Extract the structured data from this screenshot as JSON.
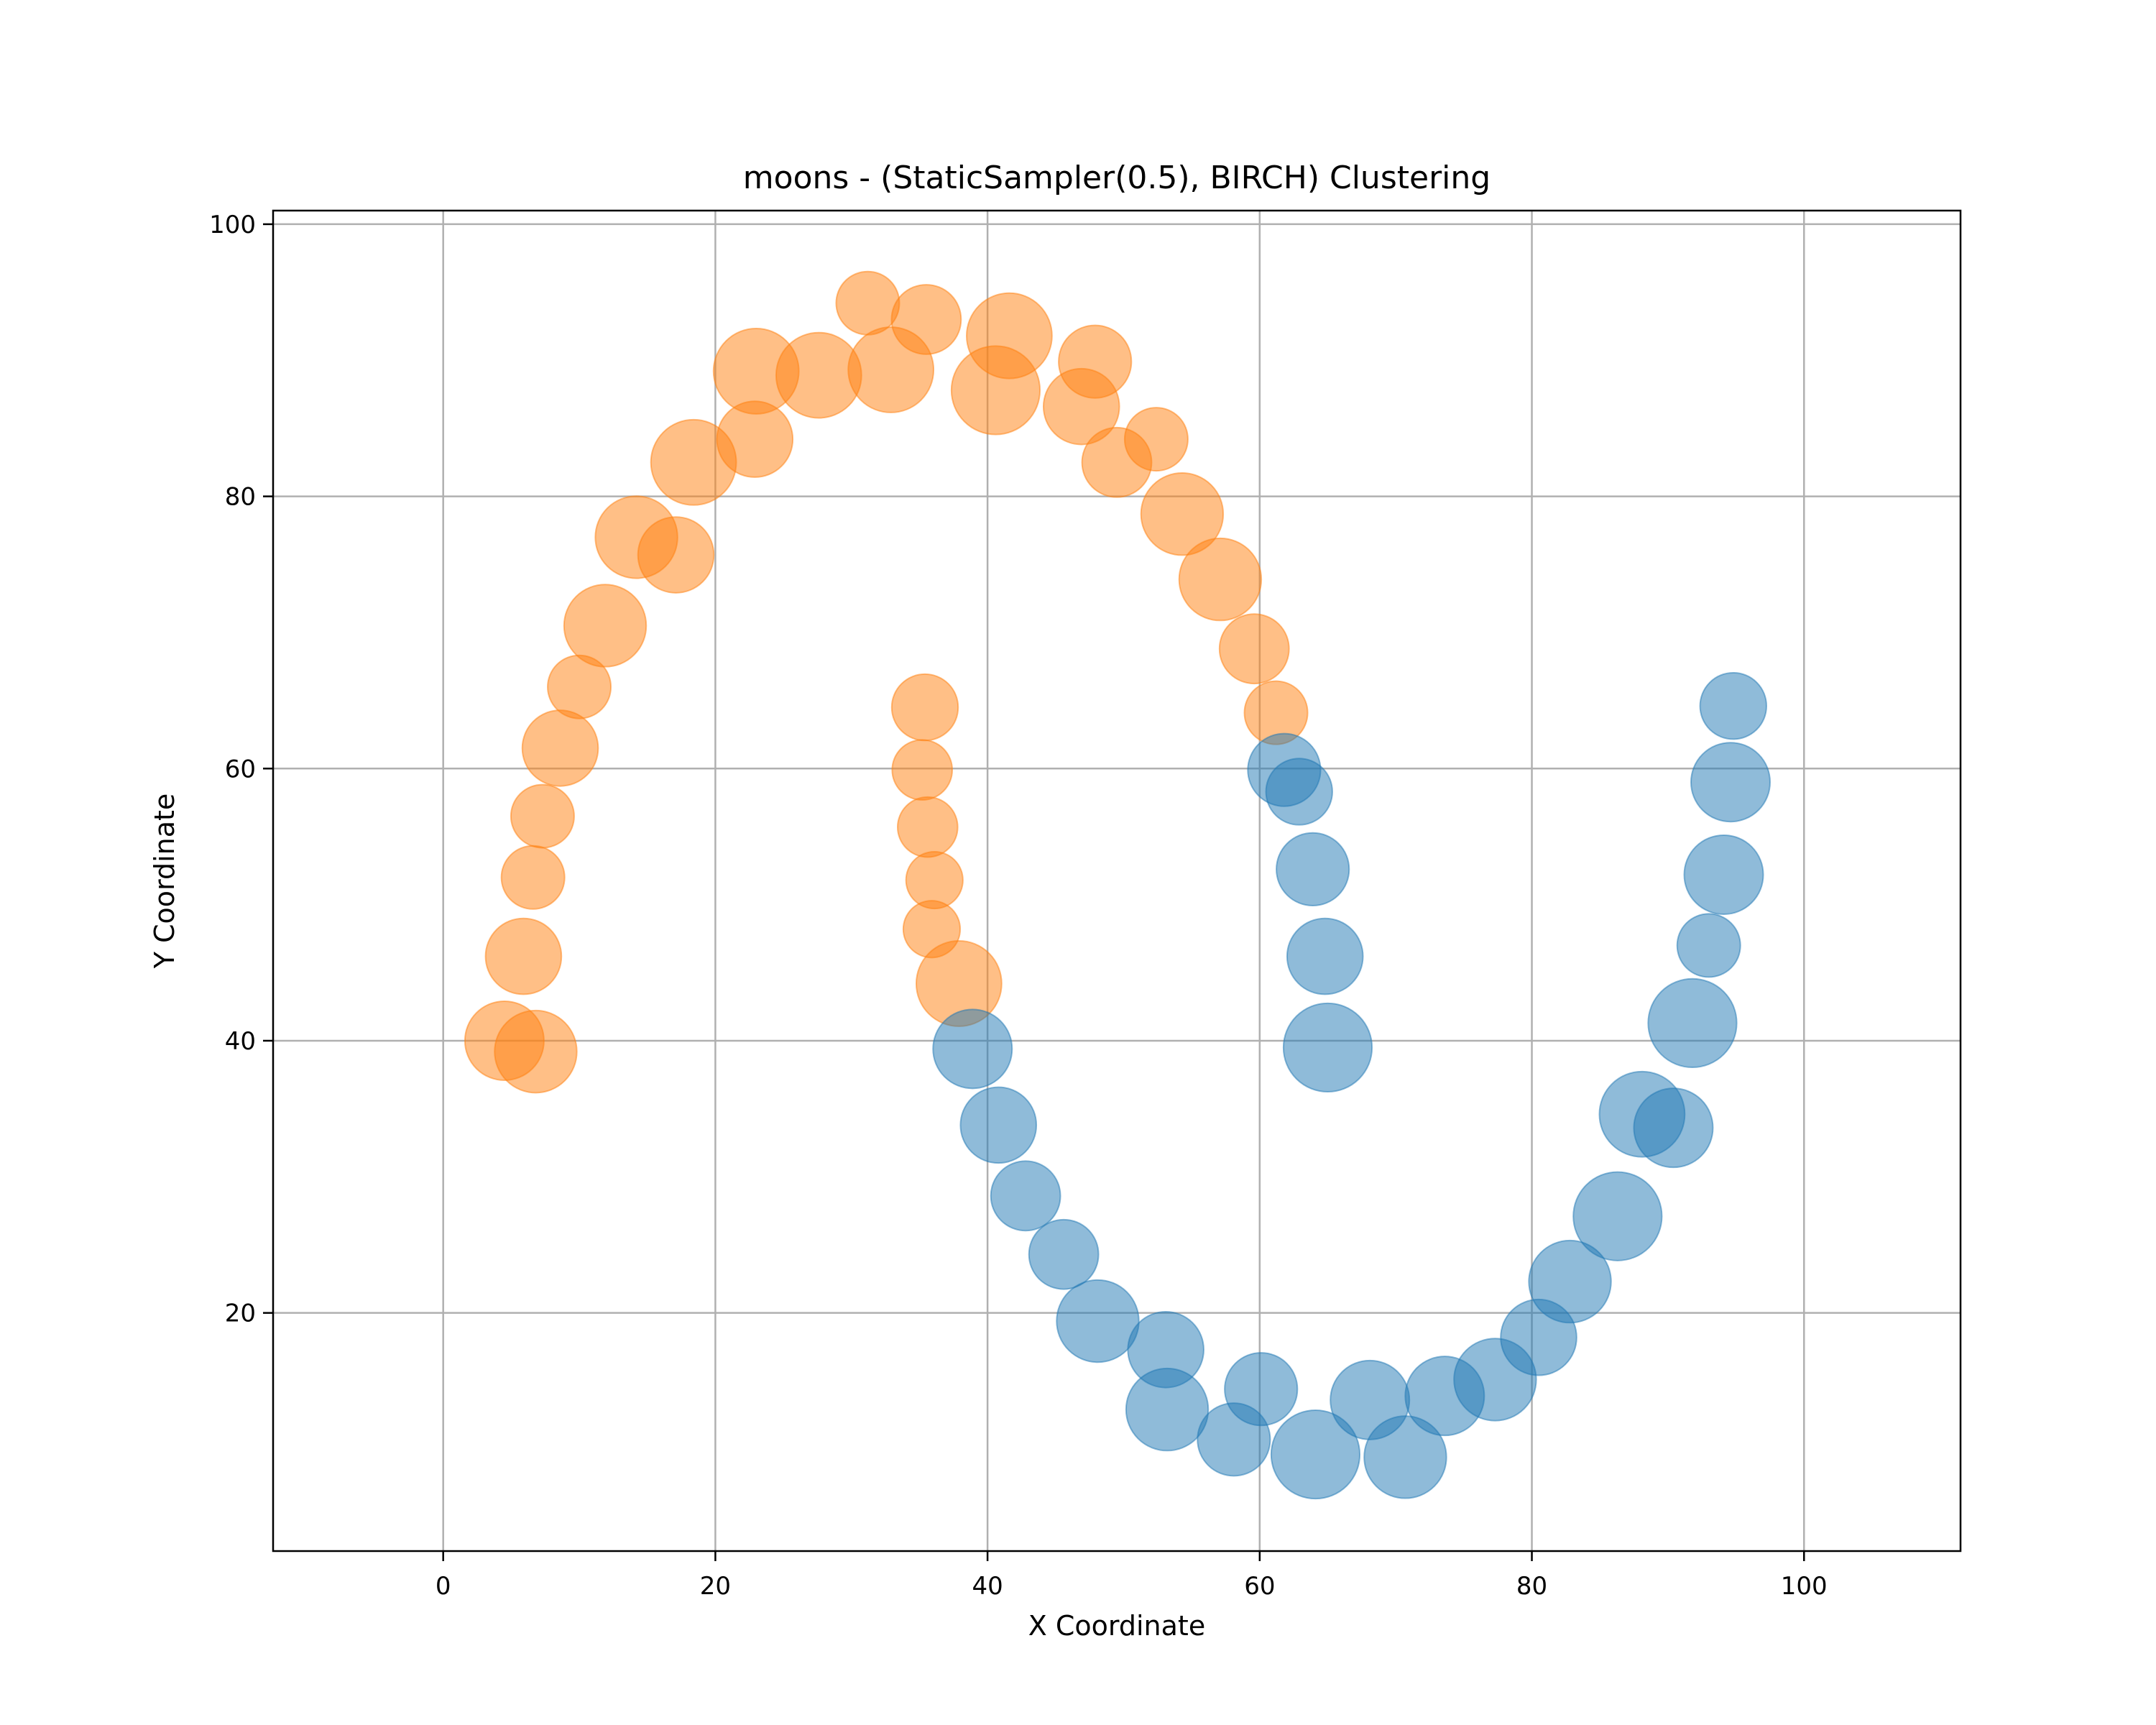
{
  "chart_data": {
    "type": "scatter",
    "title": "moons - (StaticSampler(0.5), BIRCH) Clustering",
    "xlabel": "X Coordinate",
    "ylabel": "Y Coordinate",
    "xlim": [
      -12.5,
      111.5
    ],
    "ylim": [
      2.5,
      101
    ],
    "xticks": [
      0,
      20,
      40,
      60,
      80,
      100
    ],
    "yticks": [
      20,
      40,
      60,
      80,
      100
    ],
    "xtick_labels": [
      "0",
      "20",
      "40",
      "60",
      "80",
      "100"
    ],
    "ytick_labels": [
      "20",
      "40",
      "60",
      "80",
      "100"
    ],
    "grid": true,
    "point_opacity": 0.5,
    "series": [
      {
        "color": "#ff7f0e",
        "points": [
          {
            "x": 4.5,
            "y": 40.0,
            "s": 1.25
          },
          {
            "x": 6.8,
            "y": 39.2,
            "s": 1.3
          },
          {
            "x": 5.9,
            "y": 46.2,
            "s": 1.2
          },
          {
            "x": 6.6,
            "y": 52.0,
            "s": 1.0
          },
          {
            "x": 7.3,
            "y": 56.5,
            "s": 1.0
          },
          {
            "x": 8.6,
            "y": 61.5,
            "s": 1.2
          },
          {
            "x": 10.0,
            "y": 66.0,
            "s": 1.0
          },
          {
            "x": 11.9,
            "y": 70.5,
            "s": 1.3
          },
          {
            "x": 14.2,
            "y": 77.0,
            "s": 1.3
          },
          {
            "x": 17.1,
            "y": 75.7,
            "s": 1.2
          },
          {
            "x": 18.4,
            "y": 82.5,
            "s": 1.35
          },
          {
            "x": 22.9,
            "y": 84.2,
            "s": 1.2
          },
          {
            "x": 23.0,
            "y": 89.2,
            "s": 1.35
          },
          {
            "x": 27.6,
            "y": 88.9,
            "s": 1.35
          },
          {
            "x": 31.2,
            "y": 94.2,
            "s": 1.0
          },
          {
            "x": 32.9,
            "y": 89.3,
            "s": 1.35
          },
          {
            "x": 35.5,
            "y": 93.0,
            "s": 1.1
          },
          {
            "x": 40.6,
            "y": 87.8,
            "s": 1.4
          },
          {
            "x": 41.6,
            "y": 91.8,
            "s": 1.35
          },
          {
            "x": 46.9,
            "y": 86.6,
            "s": 1.2
          },
          {
            "x": 47.9,
            "y": 89.9,
            "s": 1.15
          },
          {
            "x": 49.5,
            "y": 82.5,
            "s": 1.1
          },
          {
            "x": 52.4,
            "y": 84.2,
            "s": 1.0
          },
          {
            "x": 54.3,
            "y": 78.7,
            "s": 1.3
          },
          {
            "x": 57.1,
            "y": 73.9,
            "s": 1.3
          },
          {
            "x": 59.6,
            "y": 68.8,
            "s": 1.1
          },
          {
            "x": 61.2,
            "y": 64.1,
            "s": 1.0
          },
          {
            "x": 35.4,
            "y": 64.5,
            "s": 1.05
          },
          {
            "x": 35.2,
            "y": 59.9,
            "s": 0.95
          },
          {
            "x": 35.6,
            "y": 55.7,
            "s": 0.95
          },
          {
            "x": 36.1,
            "y": 51.8,
            "s": 0.9
          },
          {
            "x": 35.9,
            "y": 48.2,
            "s": 0.9
          },
          {
            "x": 37.9,
            "y": 44.2,
            "s": 1.35
          }
        ]
      },
      {
        "color": "#1f77b4",
        "points": [
          {
            "x": 38.9,
            "y": 39.4,
            "s": 1.25
          },
          {
            "x": 40.8,
            "y": 33.8,
            "s": 1.2
          },
          {
            "x": 42.8,
            "y": 28.6,
            "s": 1.1
          },
          {
            "x": 45.6,
            "y": 24.3,
            "s": 1.1
          },
          {
            "x": 48.1,
            "y": 19.4,
            "s": 1.3
          },
          {
            "x": 53.1,
            "y": 17.3,
            "s": 1.2
          },
          {
            "x": 53.2,
            "y": 12.9,
            "s": 1.3
          },
          {
            "x": 58.1,
            "y": 10.7,
            "s": 1.15
          },
          {
            "x": 60.1,
            "y": 14.4,
            "s": 1.15
          },
          {
            "x": 64.1,
            "y": 9.6,
            "s": 1.4
          },
          {
            "x": 68.1,
            "y": 13.6,
            "s": 1.25
          },
          {
            "x": 70.7,
            "y": 9.4,
            "s": 1.3
          },
          {
            "x": 73.6,
            "y": 13.9,
            "s": 1.25
          },
          {
            "x": 77.3,
            "y": 15.1,
            "s": 1.3
          },
          {
            "x": 80.5,
            "y": 18.2,
            "s": 1.2
          },
          {
            "x": 82.8,
            "y": 22.3,
            "s": 1.3
          },
          {
            "x": 86.3,
            "y": 27.1,
            "s": 1.4
          },
          {
            "x": 88.1,
            "y": 34.6,
            "s": 1.35
          },
          {
            "x": 90.4,
            "y": 33.6,
            "s": 1.25
          },
          {
            "x": 91.8,
            "y": 41.3,
            "s": 1.4
          },
          {
            "x": 93.0,
            "y": 47.0,
            "s": 1.0
          },
          {
            "x": 94.1,
            "y": 52.2,
            "s": 1.25
          },
          {
            "x": 94.6,
            "y": 59.0,
            "s": 1.25
          },
          {
            "x": 94.8,
            "y": 64.6,
            "s": 1.05
          },
          {
            "x": 61.8,
            "y": 59.9,
            "s": 1.15
          },
          {
            "x": 62.9,
            "y": 58.3,
            "s": 1.05
          },
          {
            "x": 63.9,
            "y": 52.6,
            "s": 1.15
          },
          {
            "x": 64.8,
            "y": 46.2,
            "s": 1.2
          },
          {
            "x": 65.0,
            "y": 39.5,
            "s": 1.4
          }
        ]
      }
    ]
  }
}
